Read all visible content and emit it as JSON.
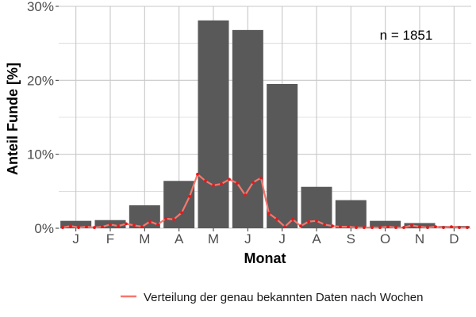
{
  "chart_data": {
    "type": "bar",
    "categories": [
      "J",
      "F",
      "M",
      "A",
      "M",
      "J",
      "J",
      "A",
      "S",
      "O",
      "N",
      "D"
    ],
    "values": [
      1.0,
      1.1,
      3.1,
      6.4,
      28.1,
      26.8,
      19.5,
      5.6,
      3.8,
      1.0,
      0.7,
      0.3
    ],
    "xlabel": "Monat",
    "ylabel": "Anteil Funde [%]",
    "ylim": [
      0,
      30
    ],
    "yticks": [
      0,
      10,
      20,
      30
    ],
    "ytick_labels": [
      "0%",
      "10%",
      "20%",
      "30%"
    ],
    "annotation": "n = 1851",
    "grid": true,
    "legend_position": "bottom",
    "colors": {
      "bars": "#595959",
      "line": "#f8766d",
      "points": "#e41a1c",
      "grid": "#c8c8c8",
      "panel": "#ffffff"
    },
    "series": [
      {
        "name": "Verteilung der genau bekannten Daten nach Wochen",
        "type": "line",
        "x": [
          1,
          2,
          3,
          4,
          5,
          6,
          7,
          8,
          9,
          10,
          11,
          12,
          13,
          14,
          15,
          16,
          17,
          18,
          19,
          20,
          21,
          22,
          23,
          24,
          25,
          26,
          27,
          28,
          29,
          30,
          31,
          32,
          33,
          34,
          35,
          36,
          37,
          38,
          39,
          40,
          41,
          42,
          43,
          44,
          45,
          46,
          47,
          48,
          49,
          50,
          51,
          52
        ],
        "values": [
          0.1,
          0.3,
          0.1,
          0.2,
          0.1,
          0.2,
          0.5,
          0.3,
          0.6,
          0.4,
          0.2,
          0.9,
          0.5,
          1.3,
          1.2,
          2.1,
          4.3,
          7.3,
          6.4,
          5.8,
          6.0,
          6.6,
          6.1,
          4.5,
          6.2,
          6.8,
          2.0,
          1.2,
          0.2,
          1.2,
          0.3,
          0.9,
          1.0,
          0.5,
          0.3,
          0.2,
          0.2,
          0.1,
          0.1,
          0.1,
          0.1,
          0.2,
          0.1,
          0.1,
          0.4,
          0.2,
          0.1,
          0.2,
          0.1,
          0.2,
          0.1,
          0.1
        ]
      }
    ]
  }
}
